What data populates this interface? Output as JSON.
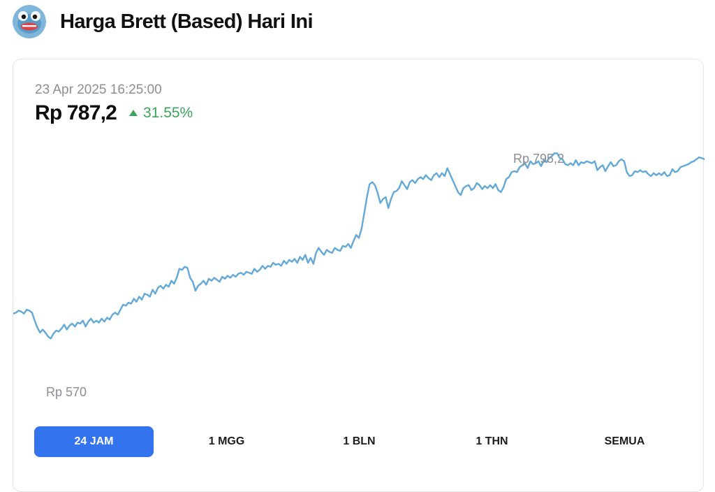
{
  "header": {
    "title": "Harga Brett (Based) Hari Ini",
    "avatar_icon": "brett-frog-icon"
  },
  "summary": {
    "timestamp": "23 Apr 2025 16:25:00",
    "price": "Rp 787,2",
    "change": "31.55%",
    "change_direction": "up",
    "change_color": "#3aa55a"
  },
  "chart_data": {
    "type": "line",
    "title": "",
    "xlabel": "",
    "ylabel": "",
    "series": [
      {
        "values": [
          631,
          632,
          634,
          633,
          631,
          635,
          634,
          632,
          624,
          617,
          612,
          615,
          612,
          608,
          606,
          611,
          614,
          613,
          616,
          620,
          615,
          619,
          621,
          618,
          622,
          621,
          624,
          618,
          623,
          626,
          622,
          624,
          622,
          626,
          623,
          627,
          625,
          630,
          632,
          630,
          635,
          640,
          639,
          642,
          641,
          646,
          643,
          648,
          645,
          651,
          650,
          648,
          655,
          651,
          657,
          659,
          656,
          660,
          658,
          664,
          661,
          667,
          676,
          675,
          678,
          677,
          667,
          663,
          654,
          659,
          661,
          664,
          660,
          666,
          664,
          667,
          665,
          663,
          668,
          666,
          669,
          667,
          670,
          668,
          671,
          672,
          670,
          673,
          672,
          671,
          676,
          673,
          675,
          679,
          676,
          679,
          678,
          682,
          680,
          681,
          679,
          684,
          681,
          685,
          683,
          686,
          682,
          688,
          685,
          690,
          682,
          687,
          681,
          692,
          697,
          693,
          690,
          695,
          693,
          692,
          697,
          695,
          694,
          699,
          698,
          701,
          697,
          704,
          710,
          707,
          716,
          732,
          748,
          761,
          763,
          760,
          752,
          742,
          746,
          748,
          737,
          746,
          753,
          754,
          757,
          764,
          760,
          756,
          763,
          765,
          762,
          766,
          768,
          766,
          770,
          767,
          765,
          770,
          772,
          768,
          772,
          769,
          777,
          771,
          765,
          759,
          753,
          750,
          757,
          759,
          760,
          755,
          757,
          762,
          760,
          756,
          759,
          757,
          760,
          757,
          761,
          755,
          753,
          758,
          766,
          768,
          773,
          774,
          773,
          778,
          780,
          782,
          777,
          784,
          781,
          782,
          784,
          779,
          785,
          783,
          787,
          789,
          792,
          792,
          787,
          786,
          781,
          780,
          782,
          780,
          785,
          780,
          783,
          782,
          784,
          783,
          782,
          784,
          775,
          778,
          780,
          774,
          779,
          783,
          779,
          780,
          784,
          786,
          784,
          773,
          769,
          770,
          774,
          773,
          775,
          773,
          774,
          771,
          769,
          772,
          770,
          772,
          770,
          773,
          769,
          770,
          776,
          773,
          774,
          778,
          779,
          780,
          781,
          783,
          784,
          786,
          788,
          787,
          786
        ]
      }
    ],
    "ylim": [
      560,
      802
    ],
    "high_label": "Rp 795,2",
    "low_label": "Rp 570",
    "line_color": "#62a8d8",
    "grid": false
  },
  "range_tabs": [
    {
      "label": "24 JAM",
      "active": true
    },
    {
      "label": "1 MGG",
      "active": false
    },
    {
      "label": "1 BLN",
      "active": false
    },
    {
      "label": "1 THN",
      "active": false
    },
    {
      "label": "SEMUA",
      "active": false
    }
  ],
  "colors": {
    "accent": "#3374ee",
    "positive": "#3aa55a",
    "line": "#62a8d8"
  }
}
